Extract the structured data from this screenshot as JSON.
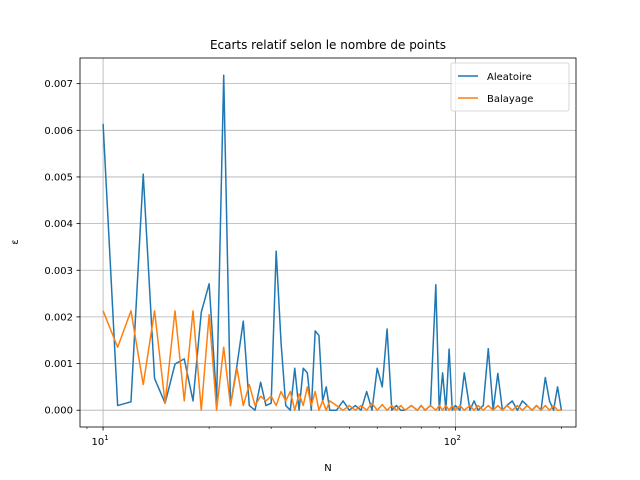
{
  "chart_data": {
    "type": "line",
    "title": "Ecarts relatif selon le nombre de points",
    "xlabel": "N",
    "ylabel": "ε",
    "xscale": "log",
    "xlim": [
      8.6,
      220
    ],
    "ylim": [
      -0.00036,
      0.00755
    ],
    "grid": true,
    "legend_position": "top-right",
    "x_ticks": [
      {
        "value": 10,
        "base": "10",
        "exp": "1"
      },
      {
        "value": 100,
        "base": "10",
        "exp": "2"
      }
    ],
    "y_ticks": [
      {
        "value": 0.0,
        "label": "0.000"
      },
      {
        "value": 0.001,
        "label": "0.001"
      },
      {
        "value": 0.002,
        "label": "0.002"
      },
      {
        "value": 0.003,
        "label": "0.003"
      },
      {
        "value": 0.004,
        "label": "0.004"
      },
      {
        "value": 0.005,
        "label": "0.005"
      },
      {
        "value": 0.006,
        "label": "0.006"
      },
      {
        "value": 0.007,
        "label": "0.007"
      }
    ],
    "series": [
      {
        "name": "Aleatoire",
        "color": "#1f77b4",
        "x": [
          10,
          11,
          12,
          13,
          14,
          15,
          16,
          17,
          18,
          19,
          20,
          21,
          22,
          23,
          24,
          25,
          26,
          27,
          28,
          29,
          30,
          31,
          32,
          33,
          34,
          35,
          36,
          37,
          38,
          39,
          40,
          41,
          42,
          43,
          44,
          46,
          48,
          50,
          52,
          54,
          56,
          58,
          60,
          62,
          64,
          66,
          68,
          70,
          72,
          75,
          78,
          80,
          82,
          85,
          88,
          90,
          92,
          94,
          96,
          98,
          100,
          103,
          106,
          110,
          113,
          116,
          120,
          124,
          128,
          132,
          136,
          140,
          145,
          150,
          155,
          160,
          165,
          170,
          175,
          180,
          185,
          190,
          195,
          200
        ],
        "values": [
          0.00614,
          0.0001,
          0.00018,
          0.00506,
          0.00068,
          0.00015,
          0.00099,
          0.0011,
          0.0002,
          0.0021,
          0.00271,
          0.0002,
          0.00718,
          0.0001,
          0.00097,
          0.00191,
          0.0001,
          0.0,
          0.0006,
          0.0001,
          0.00015,
          0.00341,
          0.00145,
          0.0001,
          0.0,
          0.0009,
          0.0,
          0.0009,
          0.0008,
          0.0,
          0.0017,
          0.0016,
          0.0002,
          0.0005,
          0.0,
          0.0,
          0.0002,
          0.0,
          0.0001,
          0.0,
          0.0004,
          0.0,
          0.0009,
          0.0005,
          0.00174,
          0.0,
          0.0001,
          0.0,
          0.0,
          0.0001,
          0.0,
          0.0001,
          0.0,
          0.0001,
          0.00269,
          0.0,
          0.0008,
          0.0,
          0.00131,
          0.0,
          0.0001,
          0.0,
          0.0008,
          0.0,
          0.0002,
          0.0,
          0.0001,
          0.00132,
          0.0,
          0.00079,
          0.0,
          0.0001,
          0.0002,
          0.0,
          0.0002,
          0.0001,
          0.0,
          0.0001,
          0.0,
          0.0007,
          0.0002,
          0.0,
          0.0005,
          0.0
        ]
      },
      {
        "name": "Balayage",
        "color": "#ff7f0e",
        "x": [
          10,
          11,
          12,
          13,
          14,
          15,
          16,
          17,
          18,
          19,
          20,
          21,
          22,
          23,
          24,
          25,
          26,
          27,
          28,
          29,
          30,
          31,
          32,
          33,
          34,
          35,
          36,
          37,
          38,
          39,
          40,
          41,
          42,
          43,
          44,
          46,
          48,
          50,
          52,
          54,
          56,
          58,
          60,
          62,
          64,
          66,
          68,
          70,
          72,
          75,
          78,
          80,
          82,
          85,
          88,
          90,
          92,
          94,
          96,
          98,
          100,
          103,
          106,
          110,
          113,
          116,
          120,
          124,
          128,
          132,
          136,
          140,
          145,
          150,
          155,
          160,
          165,
          170,
          175,
          180,
          185,
          190,
          195,
          200
        ],
        "values": [
          0.00213,
          0.00135,
          0.00213,
          0.00055,
          0.00213,
          0.00015,
          0.00213,
          0.0002,
          0.00213,
          0.0,
          0.00205,
          0.0,
          0.00135,
          0.0001,
          0.0009,
          0.0001,
          0.00055,
          0.0001,
          0.0003,
          0.0002,
          0.0003,
          0.0001,
          0.0004,
          0.0002,
          0.0004,
          0.0,
          0.00035,
          0.0001,
          0.0005,
          0.0001,
          0.0004,
          0.0,
          0.0002,
          0.0,
          0.0002,
          0.0001,
          0.0,
          0.0001,
          0.0,
          0.0001,
          0.0,
          0.00015,
          0.0,
          0.00012,
          0.0,
          0.0001,
          0.0,
          0.0001,
          0.0,
          0.0001,
          0.0,
          0.0001,
          0.0,
          0.0001,
          0.0,
          0.0001,
          0.0,
          0.0001,
          0.0,
          0.0001,
          0.0,
          0.0001,
          0.0,
          0.0001,
          0.0,
          0.0001,
          0.0,
          0.0001,
          0.0,
          0.0001,
          0.0,
          0.0001,
          0.0,
          0.0001,
          0.0,
          0.0001,
          0.0,
          0.0001,
          0.0,
          0.0001,
          0.0,
          0.0001,
          0.0,
          0.0
        ]
      }
    ]
  }
}
